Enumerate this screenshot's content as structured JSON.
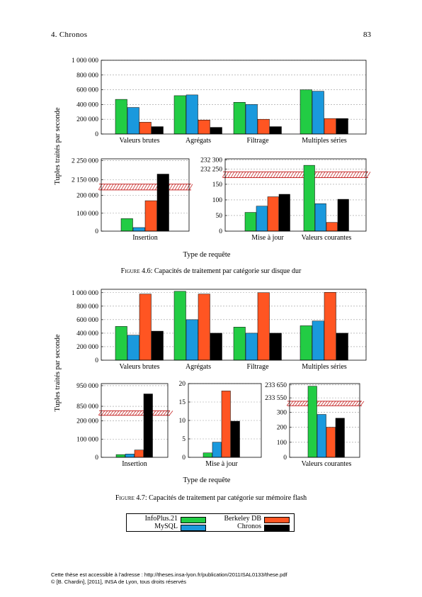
{
  "header": {
    "chapter": "4. Chronos",
    "page_number": "83"
  },
  "legend": [
    {
      "name": "InfoPlus.21",
      "color": "#22cc44"
    },
    {
      "name": "Berkeley DB",
      "color": "#ff5522"
    },
    {
      "name": "MySQL",
      "color": "#1a99dd"
    },
    {
      "name": "Chronos",
      "color": "#000000"
    }
  ],
  "figure1": {
    "caption_label": "Figure 4.6:",
    "caption_text": "Capacités de traitement par catégorie sur disque dur",
    "ylabel": "Tuples traités par seconde",
    "xlabel": "Type de requête"
  },
  "figure2": {
    "caption_label": "Figure 4.7:",
    "caption_text": "Capacités de traitement par catégorie sur mémoire flash",
    "ylabel": "Tuples traités par seconde",
    "xlabel": "Type de requête"
  },
  "footer": {
    "line1": "Cette thèse est accessible à l'adresse : http://theses.insa-lyon.fr/publication/2011ISAL0133/these.pdf",
    "line2": "© [B. Chardin], [2011], INSA de Lyon, tous droits réservés"
  },
  "chart_data": [
    {
      "type": "bar",
      "series_names": [
        "InfoPlus.21",
        "MySQL",
        "Berkeley DB",
        "Chronos"
      ],
      "categories": [
        "Valeurs brutes",
        "Agrégats",
        "Filtrage",
        "Multiples séries"
      ],
      "series": [
        {
          "name": "InfoPlus.21",
          "values": [
            470000,
            520000,
            430000,
            600000
          ]
        },
        {
          "name": "MySQL",
          "values": [
            360000,
            530000,
            400000,
            580000
          ]
        },
        {
          "name": "Berkeley DB",
          "values": [
            160000,
            190000,
            200000,
            210000
          ]
        },
        {
          "name": "Chronos",
          "values": [
            100000,
            90000,
            100000,
            210000
          ]
        }
      ],
      "yticks": [
        "0",
        "200 000",
        "400 000",
        "600 000",
        "800 000",
        "1 000 000"
      ],
      "ylim": [
        0,
        1000000
      ],
      "grid": true
    },
    {
      "type": "bar",
      "categories": [
        "Insertion"
      ],
      "axis_break": true,
      "series": [
        {
          "name": "InfoPlus.21",
          "values": [
            70000
          ]
        },
        {
          "name": "MySQL",
          "values": [
            20000
          ]
        },
        {
          "name": "Berkeley DB",
          "values": [
            170000
          ]
        },
        {
          "name": "Chronos",
          "values": [
            2180000
          ]
        }
      ],
      "yticks": [
        "0",
        "100 000",
        "200 000",
        "2 150 000",
        "2 250 000"
      ],
      "grid": true
    },
    {
      "type": "bar",
      "categories": [
        "Mise à jour",
        "Valeurs courantes"
      ],
      "axis_break": true,
      "series": [
        {
          "name": "InfoPlus.21",
          "values": [
            60,
            232270
          ]
        },
        {
          "name": "MySQL",
          "values": [
            80,
            88
          ]
        },
        {
          "name": "Berkeley DB",
          "values": [
            110,
            28
          ]
        },
        {
          "name": "Chronos",
          "values": [
            118,
            102
          ]
        }
      ],
      "yticks": [
        "0",
        "50",
        "100",
        "150",
        "232 250",
        "232 300"
      ],
      "grid": true
    },
    {
      "type": "bar",
      "categories": [
        "Valeurs brutes",
        "Agrégats",
        "Filtrage",
        "Multiples séries"
      ],
      "series": [
        {
          "name": "InfoPlus.21",
          "values": [
            500000,
            1020000,
            490000,
            510000
          ]
        },
        {
          "name": "MySQL",
          "values": [
            370000,
            600000,
            400000,
            580000
          ]
        },
        {
          "name": "Berkeley DB",
          "values": [
            980000,
            980000,
            1000000,
            1005000
          ]
        },
        {
          "name": "Chronos",
          "values": [
            430000,
            400000,
            400000,
            400000
          ]
        }
      ],
      "yticks": [
        "0",
        "200 000",
        "400 000",
        "600 000",
        "800 000",
        "1 000 000"
      ],
      "ylim": [
        0,
        1000000
      ],
      "grid": true
    },
    {
      "type": "bar",
      "categories": [
        "Insertion"
      ],
      "axis_break": true,
      "series": [
        {
          "name": "InfoPlus.21",
          "values": [
            15000
          ]
        },
        {
          "name": "MySQL",
          "values": [
            18000
          ]
        },
        {
          "name": "Berkeley DB",
          "values": [
            40000
          ]
        },
        {
          "name": "Chronos",
          "values": [
            910000
          ]
        }
      ],
      "yticks": [
        "0",
        "100 000",
        "200 000",
        "850 000",
        "950 000"
      ],
      "grid": true
    },
    {
      "type": "bar",
      "categories": [
        "Mise à jour"
      ],
      "series": [
        {
          "name": "InfoPlus.21",
          "values": [
            1.2
          ]
        },
        {
          "name": "MySQL",
          "values": [
            4.1
          ]
        },
        {
          "name": "Berkeley DB",
          "values": [
            18
          ]
        },
        {
          "name": "Chronos",
          "values": [
            9.8
          ]
        }
      ],
      "yticks": [
        "0",
        "5",
        "10",
        "15",
        "20"
      ],
      "ylim": [
        0,
        20
      ],
      "grid": true
    },
    {
      "type": "bar",
      "categories": [
        "Valeurs courantes"
      ],
      "axis_break": true,
      "series": [
        {
          "name": "InfoPlus.21",
          "values": [
            233640
          ]
        },
        {
          "name": "MySQL",
          "values": [
            285
          ]
        },
        {
          "name": "Berkeley DB",
          "values": [
            200
          ]
        },
        {
          "name": "Chronos",
          "values": [
            260
          ]
        }
      ],
      "yticks": [
        "0",
        "100",
        "200",
        "300",
        "233 550",
        "233 650"
      ],
      "grid": true
    }
  ]
}
